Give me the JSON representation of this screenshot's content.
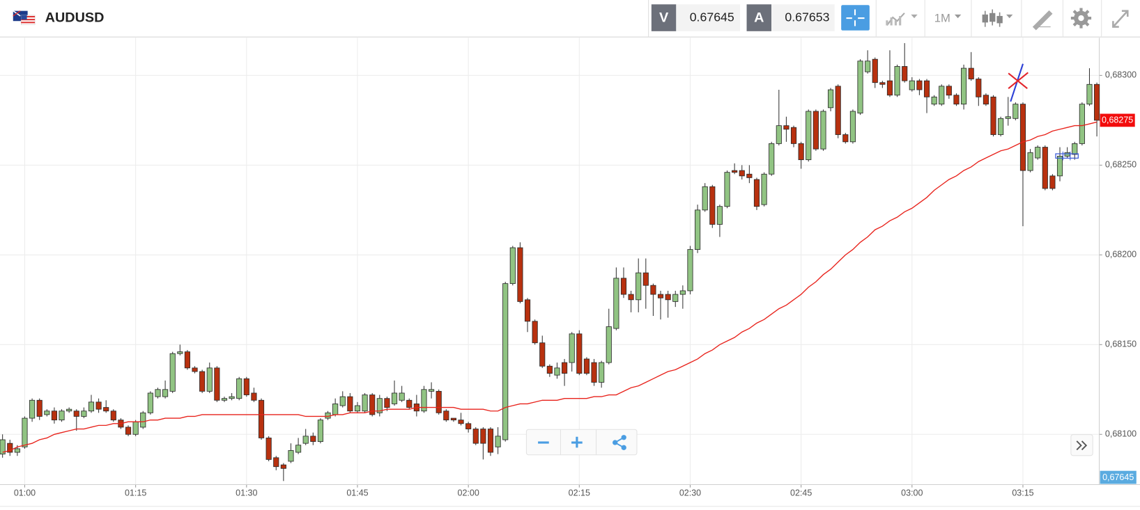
{
  "header": {
    "symbol": "AUDUSD",
    "sell_label": "V",
    "sell_price": "0.67645",
    "buy_label": "A",
    "buy_price": "0.67653",
    "timeframe": "1M"
  },
  "price_badge": "0,67645",
  "chart_data": {
    "type": "candlestick",
    "x": [
      null,
      null,
      null,
      "01:00",
      null,
      null,
      null,
      null,
      null,
      null,
      null,
      null,
      null,
      null,
      null,
      null,
      null,
      null,
      "01:15",
      null,
      null,
      null,
      null,
      null,
      null,
      null,
      null,
      null,
      null,
      null,
      null,
      null,
      null,
      "01:30",
      null,
      null,
      null,
      null,
      null,
      null,
      null,
      null,
      null,
      null,
      null,
      null,
      null,
      null,
      "01:45",
      null,
      null,
      null,
      null,
      null,
      null,
      null,
      null,
      null,
      null,
      null,
      null,
      null,
      null,
      "02:00",
      null,
      null,
      null,
      null,
      null,
      null,
      null,
      null,
      null,
      null,
      null,
      null,
      null,
      null,
      "02:15",
      null,
      null,
      null,
      null,
      null,
      null,
      null,
      null,
      null,
      null,
      null,
      null,
      null,
      null,
      "02:30",
      null,
      null,
      null,
      null,
      null,
      null,
      null,
      null,
      null,
      null,
      null,
      null,
      null,
      null,
      "02:45",
      null,
      null,
      null,
      null,
      null,
      null,
      null,
      null,
      null,
      null,
      null,
      null,
      null,
      null,
      "03:00",
      null,
      null,
      null,
      null,
      null,
      null,
      null,
      null,
      null,
      null,
      null,
      null,
      null,
      null,
      "03:15",
      null,
      null,
      null,
      null,
      null,
      null,
      null,
      null,
      null,
      null
    ],
    "open": [
      0.68089,
      0.68095,
      0.6809,
      0.68093,
      0.68109,
      0.68119,
      0.68111,
      0.68113,
      0.68108,
      0.68113,
      0.68113,
      0.6811,
      0.68113,
      0.68118,
      0.68115,
      0.68113,
      0.68108,
      0.68104,
      0.681,
      0.68104,
      0.68112,
      0.68121,
      0.68121,
      0.68124,
      0.68145,
      0.68146,
      0.68137,
      0.68135,
      0.68124,
      0.68137,
      0.68119,
      0.6812,
      0.6812,
      0.68131,
      0.68123,
      0.68119,
      0.68098,
      0.68087,
      0.68083,
      0.68085,
      0.6809,
      0.68095,
      0.68099,
      0.68096,
      0.68109,
      0.68111,
      0.68116,
      0.68121,
      0.68113,
      0.68113,
      0.68122,
      0.68112,
      0.6812,
      0.68117,
      0.68119,
      0.68119,
      0.68117,
      0.68113,
      0.68124,
      0.68124,
      0.68113,
      0.68109,
      0.68108,
      0.68106,
      0.68103,
      0.68103,
      0.68103,
      0.68093,
      0.68097,
      0.68184,
      0.68204,
      0.68175,
      0.68163,
      0.68151,
      0.68138,
      0.68133,
      0.6814,
      0.6814,
      0.68156,
      0.68142,
      0.6814,
      0.68129,
      0.6814,
      0.68159,
      0.68187,
      0.68178,
      0.68175,
      0.6819,
      0.68183,
      0.68178,
      0.68178,
      0.68174,
      0.68178,
      0.6818,
      0.68203,
      0.68225,
      0.68238,
      0.68217,
      0.68227,
      0.68247,
      0.68247,
      0.68245,
      0.68242,
      0.68228,
      0.68245,
      0.68262,
      0.68272,
      0.68271,
      0.68262,
      0.68253,
      0.6828,
      0.68259,
      0.68282,
      0.68294,
      0.68267,
      0.68263,
      0.68279,
      0.68302,
      0.68309,
      0.68296,
      0.68297,
      0.68289,
      0.68305,
      0.68292,
      0.68297,
      0.68297,
      0.68284,
      0.68284,
      0.68294,
      0.68289,
      0.68284,
      0.68304,
      0.68298,
      0.68289,
      0.68288,
      0.68267,
      0.68276,
      0.68276,
      0.68284,
      0.68247,
      0.68254,
      0.6826,
      0.68244,
      0.68244,
      0.68255,
      0.68256,
      0.68262,
      0.68284,
      0.68295
    ],
    "high": [
      0.681,
      0.68097,
      0.68094,
      0.6811,
      0.6812,
      0.6812,
      0.68114,
      0.68115,
      0.68114,
      0.68115,
      0.68114,
      0.68115,
      0.68122,
      0.6812,
      0.68119,
      0.68114,
      0.68109,
      0.68105,
      0.68108,
      0.68113,
      0.68124,
      0.68126,
      0.6813,
      0.68146,
      0.6815,
      0.68147,
      0.68138,
      0.68136,
      0.6814,
      0.68138,
      0.68121,
      0.68123,
      0.68132,
      0.68132,
      0.68126,
      0.6812,
      0.68099,
      0.68088,
      0.68084,
      0.68095,
      0.68098,
      0.68103,
      0.68101,
      0.68109,
      0.68113,
      0.6812,
      0.68124,
      0.68123,
      0.68118,
      0.68123,
      0.68123,
      0.68122,
      0.68121,
      0.6813,
      0.68127,
      0.6812,
      0.68122,
      0.68127,
      0.68129,
      0.68125,
      0.68114,
      0.68109,
      0.68112,
      0.68107,
      0.68104,
      0.68104,
      0.68104,
      0.68104,
      0.68185,
      0.68205,
      0.68207,
      0.68176,
      0.68164,
      0.68155,
      0.68139,
      0.6814,
      0.68142,
      0.68157,
      0.68158,
      0.68143,
      0.68142,
      0.68141,
      0.6817,
      0.68193,
      0.68193,
      0.6818,
      0.68198,
      0.68198,
      0.68184,
      0.6818,
      0.6818,
      0.6818,
      0.68183,
      0.68205,
      0.68228,
      0.6824,
      0.68239,
      0.68228,
      0.68247,
      0.68251,
      0.6825,
      0.6825,
      0.68243,
      0.68246,
      0.68263,
      0.68292,
      0.68277,
      0.68272,
      0.68263,
      0.68281,
      0.68281,
      0.68281,
      0.68293,
      0.68295,
      0.68268,
      0.68281,
      0.68309,
      0.68314,
      0.6831,
      0.68297,
      0.68314,
      0.68306,
      0.68318,
      0.68299,
      0.68298,
      0.68298,
      0.68289,
      0.68295,
      0.68295,
      0.6829,
      0.68306,
      0.68313,
      0.68299,
      0.6829,
      0.68289,
      0.68277,
      0.68288,
      0.68285,
      0.68285,
      0.68259,
      0.68261,
      0.68261,
      0.68245,
      0.6826,
      0.6826,
      0.68263,
      0.68285,
      0.68304,
      0.68296
    ],
    "low": [
      0.68087,
      0.68088,
      0.68088,
      0.68092,
      0.68107,
      0.68108,
      0.6811,
      0.68106,
      0.68107,
      0.68112,
      0.68102,
      0.68109,
      0.68112,
      0.68112,
      0.68112,
      0.68107,
      0.68103,
      0.68099,
      0.68099,
      0.68103,
      0.68111,
      0.6812,
      0.6812,
      0.68123,
      0.68144,
      0.68136,
      0.68134,
      0.68123,
      0.68123,
      0.68118,
      0.68118,
      0.68119,
      0.68119,
      0.68121,
      0.68118,
      0.68097,
      0.68085,
      0.6808,
      0.68074,
      0.68084,
      0.68089,
      0.68094,
      0.68094,
      0.68095,
      0.68108,
      0.6811,
      0.68115,
      0.68112,
      0.68112,
      0.68112,
      0.6811,
      0.6811,
      0.68113,
      0.68116,
      0.68118,
      0.68114,
      0.6811,
      0.68112,
      0.6812,
      0.68111,
      0.68107,
      0.68107,
      0.68105,
      0.68101,
      0.68094,
      0.68086,
      0.68088,
      0.68089,
      0.68096,
      0.68183,
      0.68173,
      0.68157,
      0.6815,
      0.68137,
      0.68132,
      0.68131,
      0.68127,
      0.68135,
      0.68133,
      0.68133,
      0.68127,
      0.68126,
      0.68139,
      0.68158,
      0.68176,
      0.68168,
      0.68168,
      0.6817,
      0.68166,
      0.68164,
      0.68165,
      0.68171,
      0.6817,
      0.68178,
      0.68201,
      0.68224,
      0.68215,
      0.6821,
      0.68226,
      0.68245,
      0.68242,
      0.6824,
      0.68225,
      0.68227,
      0.68244,
      0.68261,
      0.68263,
      0.6826,
      0.68248,
      0.68252,
      0.68258,
      0.68258,
      0.6828,
      0.68265,
      0.68262,
      0.68262,
      0.68278,
      0.68301,
      0.68293,
      0.68293,
      0.68288,
      0.68288,
      0.68296,
      0.68291,
      0.68289,
      0.68279,
      0.68283,
      0.68283,
      0.68287,
      0.68283,
      0.68281,
      0.68297,
      0.68283,
      0.68283,
      0.68266,
      0.68266,
      0.68272,
      0.68275,
      0.68216,
      0.68246,
      0.68253,
      0.68236,
      0.68236,
      0.68241,
      0.68254,
      0.68253,
      0.68261,
      0.68283,
      0.68266
    ],
    "close": [
      0.68097,
      0.6809,
      0.68092,
      0.68109,
      0.68119,
      0.6811,
      0.68113,
      0.68108,
      0.68113,
      0.68114,
      0.6811,
      0.68113,
      0.68118,
      0.68114,
      0.68113,
      0.68108,
      0.68104,
      0.681,
      0.68107,
      0.68112,
      0.68123,
      0.68125,
      0.68125,
      0.68145,
      0.68146,
      0.68137,
      0.68135,
      0.68124,
      0.68137,
      0.68119,
      0.6812,
      0.68121,
      0.68131,
      0.68122,
      0.68119,
      0.68098,
      0.68086,
      0.68082,
      0.68081,
      0.68091,
      0.68094,
      0.68099,
      0.68096,
      0.68108,
      0.68112,
      0.68117,
      0.68121,
      0.68113,
      0.68116,
      0.68122,
      0.68111,
      0.6812,
      0.68115,
      0.68123,
      0.68123,
      0.68115,
      0.68113,
      0.68125,
      0.68125,
      0.68112,
      0.68108,
      0.68108,
      0.68106,
      0.68103,
      0.68095,
      0.68095,
      0.6809,
      0.68099,
      0.68184,
      0.68204,
      0.68174,
      0.68163,
      0.68151,
      0.68138,
      0.68134,
      0.68137,
      0.68134,
      0.68156,
      0.68134,
      0.68134,
      0.68129,
      0.6814,
      0.6816,
      0.68187,
      0.68178,
      0.68175,
      0.6819,
      0.68183,
      0.68178,
      0.68176,
      0.68175,
      0.68178,
      0.6818,
      0.68203,
      0.68225,
      0.68238,
      0.68217,
      0.68227,
      0.68246,
      0.68246,
      0.68244,
      0.68243,
      0.68227,
      0.68245,
      0.68262,
      0.68272,
      0.6827,
      0.68262,
      0.68253,
      0.6828,
      0.68259,
      0.6828,
      0.68292,
      0.68267,
      0.68263,
      0.6828,
      0.68308,
      0.68308,
      0.68296,
      0.68295,
      0.68289,
      0.68305,
      0.68297,
      0.68297,
      0.68292,
      0.68288,
      0.68288,
      0.68294,
      0.68289,
      0.68284,
      0.68304,
      0.68298,
      0.68288,
      0.68284,
      0.68267,
      0.68276,
      0.68277,
      0.68284,
      0.68247,
      0.68257,
      0.6826,
      0.68237,
      0.68237,
      0.68255,
      0.68257,
      0.68262,
      0.68284,
      0.68295,
      0.68275
    ],
    "up_color": "#91c483",
    "down_color": "#b8310f",
    "moving_average": {
      "color": "#e8221b",
      "values": [
        0.6809,
        0.68091,
        0.68093,
        0.68094,
        0.68095,
        0.68097,
        0.68098,
        0.681,
        0.68101,
        0.68102,
        0.68103,
        0.68103,
        0.68104,
        0.68105,
        0.68105,
        0.68106,
        0.68106,
        0.68107,
        0.68107,
        0.68107,
        0.68108,
        0.68108,
        0.68109,
        0.68109,
        0.68109,
        0.6811,
        0.6811,
        0.68111,
        0.68111,
        0.68111,
        0.68111,
        0.68111,
        0.68111,
        0.68111,
        0.68111,
        0.68111,
        0.68111,
        0.68111,
        0.68111,
        0.68111,
        0.68111,
        0.6811,
        0.6811,
        0.6811,
        0.6811,
        0.68111,
        0.68111,
        0.68112,
        0.68112,
        0.68112,
        0.68113,
        0.68113,
        0.68114,
        0.68114,
        0.68114,
        0.68114,
        0.68115,
        0.68115,
        0.68115,
        0.68115,
        0.68115,
        0.68115,
        0.68114,
        0.68114,
        0.68114,
        0.68114,
        0.68113,
        0.68113,
        0.68115,
        0.68116,
        0.68117,
        0.68117,
        0.68118,
        0.68119,
        0.68119,
        0.68119,
        0.6812,
        0.6812,
        0.6812,
        0.6812,
        0.68121,
        0.68121,
        0.68122,
        0.68122,
        0.68124,
        0.68126,
        0.68127,
        0.68129,
        0.68131,
        0.68133,
        0.68135,
        0.68136,
        0.68138,
        0.6814,
        0.68142,
        0.68145,
        0.68147,
        0.6815,
        0.68152,
        0.68154,
        0.68157,
        0.68159,
        0.68162,
        0.68164,
        0.68167,
        0.6817,
        0.68172,
        0.68175,
        0.68178,
        0.68182,
        0.68185,
        0.68189,
        0.68192,
        0.68196,
        0.682,
        0.68203,
        0.68207,
        0.6821,
        0.68214,
        0.68216,
        0.68219,
        0.68221,
        0.68224,
        0.68226,
        0.68229,
        0.68232,
        0.68236,
        0.68239,
        0.68242,
        0.68244,
        0.68247,
        0.68249,
        0.68252,
        0.68254,
        0.68256,
        0.68258,
        0.68259,
        0.68261,
        0.68263,
        0.68264,
        0.68266,
        0.68267,
        0.68269,
        0.6827,
        0.68271,
        0.68272,
        0.68272,
        0.68273,
        0.68274
      ]
    },
    "ylim": [
      0.68072,
      0.68321
    ],
    "yticks": [
      {
        "value": 0.681,
        "label": "0,68100"
      },
      {
        "value": 0.6815,
        "label": "0,68150"
      },
      {
        "value": 0.682,
        "label": "0,68200"
      },
      {
        "value": 0.6825,
        "label": "0,68250"
      },
      {
        "value": 0.683,
        "label": "0,68300"
      }
    ],
    "last_price": {
      "value": 0.68275,
      "label": "0,68275"
    },
    "grid": true
  }
}
